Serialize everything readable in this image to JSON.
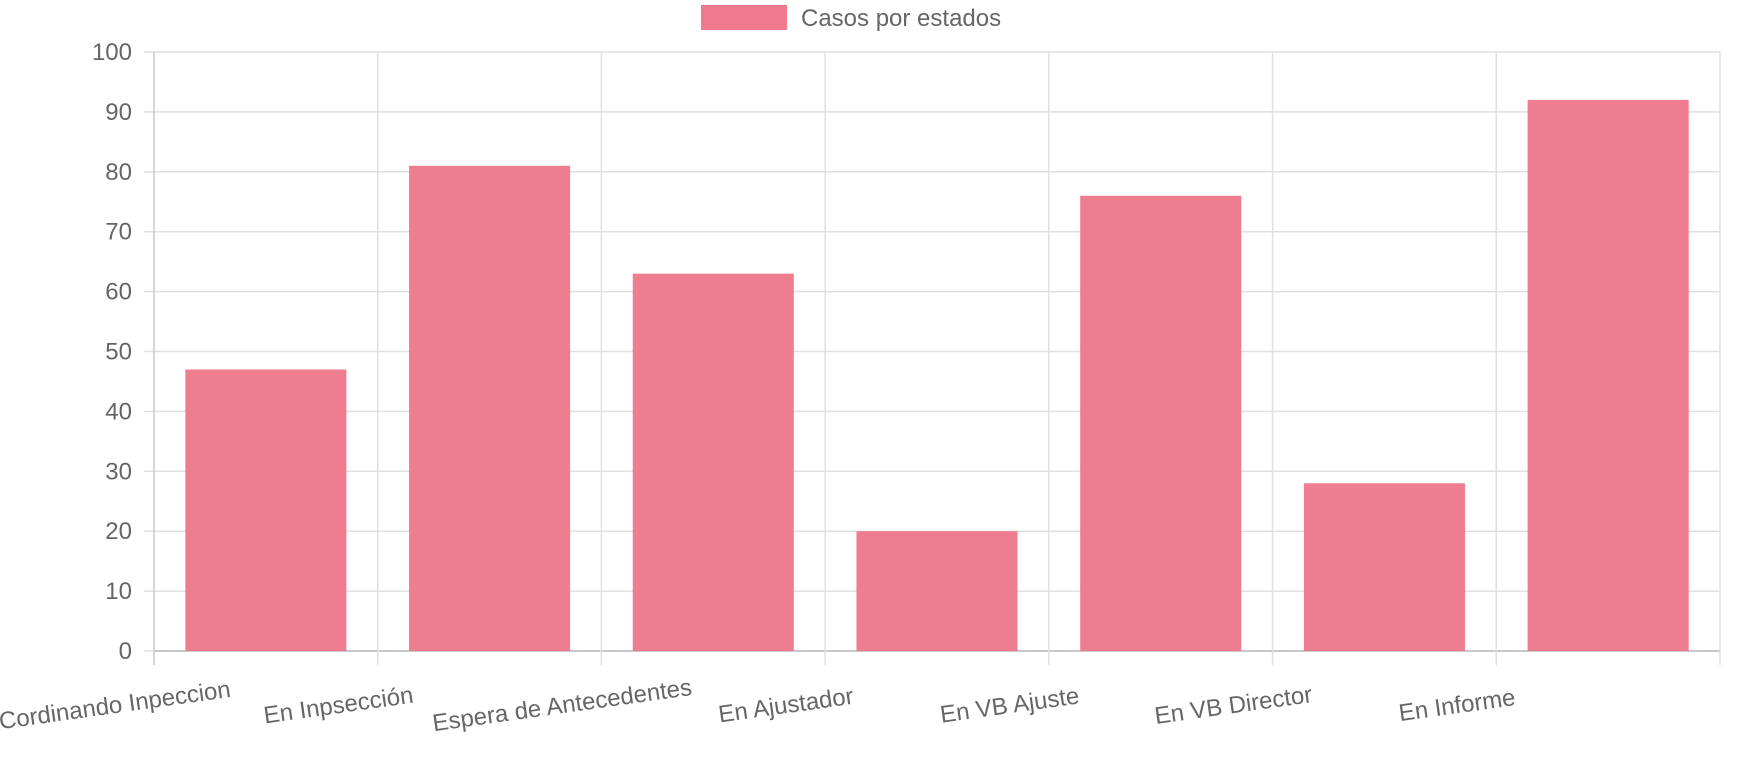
{
  "chart_data": {
    "type": "bar",
    "categories": [
      "Cordinando Inpeccion",
      "En Inpsección",
      "Espera de Antecedentes",
      "En Ajustador",
      "En VB Ajuste",
      "En VB Director",
      "En Informe"
    ],
    "series": [
      {
        "name": "Casos por estados",
        "values": [
          47,
          81,
          63,
          20,
          76,
          28,
          92
        ],
        "color": "#ef7a8e"
      }
    ],
    "ylim": [
      0,
      100
    ],
    "yticks": [
      "0",
      "10",
      "20",
      "30",
      "40",
      "50",
      "60",
      "70",
      "80",
      "90",
      "100"
    ],
    "grid": true,
    "legend_position": "top-center",
    "colors": {
      "grid": "#e0e0e0",
      "axis": "#c8c8c8",
      "text": "#666666"
    }
  }
}
